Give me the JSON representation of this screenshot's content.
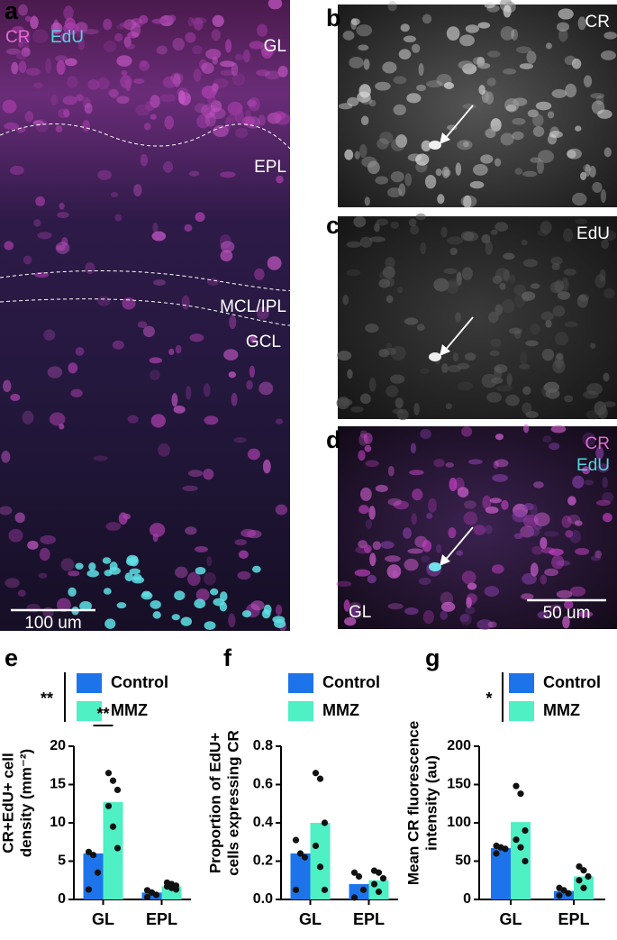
{
  "images": [
    {
      "letter": "a",
      "channels": [
        {
          "text": "CR",
          "color": "#e66ad2"
        },
        {
          "text": "EdU",
          "color": "#4fd8e0"
        }
      ],
      "annotations": [
        "GL",
        "EPL",
        "MCL/IPL",
        "GCL"
      ],
      "scale_bar": "100 um"
    },
    {
      "letter": "b",
      "channels": [
        {
          "text": "CR",
          "color": "#ffffff"
        }
      ],
      "annotations": [],
      "scale_bar": null
    },
    {
      "letter": "c",
      "channels": [
        {
          "text": "EdU",
          "color": "#ffffff"
        }
      ],
      "annotations": [],
      "scale_bar": null
    },
    {
      "letter": "d",
      "channels": [
        {
          "text": "CR",
          "color": "#e66ad2"
        },
        {
          "text": "EdU",
          "color": "#4fd8e0"
        }
      ],
      "annotations": [
        "GL"
      ],
      "scale_bar": "50 um"
    }
  ],
  "chart_data": [
    {
      "type": "bar",
      "letter": "e",
      "ylabel": [
        "CR+EdU+ cell",
        "density (mm⁻²)"
      ],
      "categories": [
        "GL",
        "EPL"
      ],
      "series": [
        {
          "name": "Control",
          "color": "#1d74ea",
          "values": [
            6.0,
            0.9
          ],
          "points": [
            [
              6.2,
              5.8,
              3.5,
              1.3
            ],
            [
              1.2,
              0.9,
              0.6,
              0.3
            ]
          ]
        },
        {
          "name": "MMZ",
          "color": "#4ef0c4",
          "values": [
            12.7,
            1.7
          ],
          "points": [
            [
              16.5,
              15.5,
              14.3,
              12.2,
              9.5,
              6.7
            ],
            [
              2.2,
              2.0,
              1.8,
              1.7,
              1.5,
              1.3
            ]
          ]
        }
      ],
      "ylim": [
        0,
        20
      ],
      "yticks": [
        0,
        5,
        10,
        15,
        20
      ],
      "legend_significance": "**",
      "category_significance": {
        "category": 0,
        "text": "**"
      }
    },
    {
      "type": "bar",
      "letter": "f",
      "ylabel": [
        "Proportion of EdU+",
        "cells expressing CR"
      ],
      "categories": [
        "GL",
        "EPL"
      ],
      "series": [
        {
          "name": "Control",
          "color": "#1d74ea",
          "values": [
            0.24,
            0.08
          ],
          "points": [
            [
              0.31,
              0.24,
              0.22,
              0.05
            ],
            [
              0.14,
              0.12,
              0.05,
              0.01
            ]
          ]
        },
        {
          "name": "MMZ",
          "color": "#4ef0c4",
          "values": [
            0.4,
            0.1
          ],
          "points": [
            [
              0.66,
              0.63,
              0.4,
              0.28,
              0.17,
              0.05
            ],
            [
              0.15,
              0.14,
              0.11,
              0.08,
              0.04
            ]
          ]
        }
      ],
      "ylim": [
        0,
        0.8
      ],
      "yticks": [
        {
          "value": 0,
          "label": "0.0"
        },
        0.2,
        0.4,
        0.6,
        0.8
      ],
      "legend_significance": null,
      "category_significance": null
    },
    {
      "type": "bar",
      "letter": "g",
      "ylabel": [
        "Mean CR fluorescence",
        "intensity (au)"
      ],
      "categories": [
        "GL",
        "EPL"
      ],
      "series": [
        {
          "name": "Control",
          "color": "#1d74ea",
          "values": [
            67,
            11
          ],
          "points": [
            [
              70,
              68,
              66,
              60
            ],
            [
              15,
              12,
              8,
              5
            ]
          ]
        },
        {
          "name": "MMZ",
          "color": "#4ef0c4",
          "values": [
            101,
            30
          ],
          "points": [
            [
              148,
              138,
              90,
              78,
              68,
              50
            ],
            [
              43,
              38,
              30,
              25,
              15
            ]
          ]
        }
      ],
      "ylim": [
        0,
        200
      ],
      "yticks": [
        0,
        50,
        100,
        150,
        200
      ],
      "legend_significance": "*",
      "category_significance": null
    }
  ]
}
